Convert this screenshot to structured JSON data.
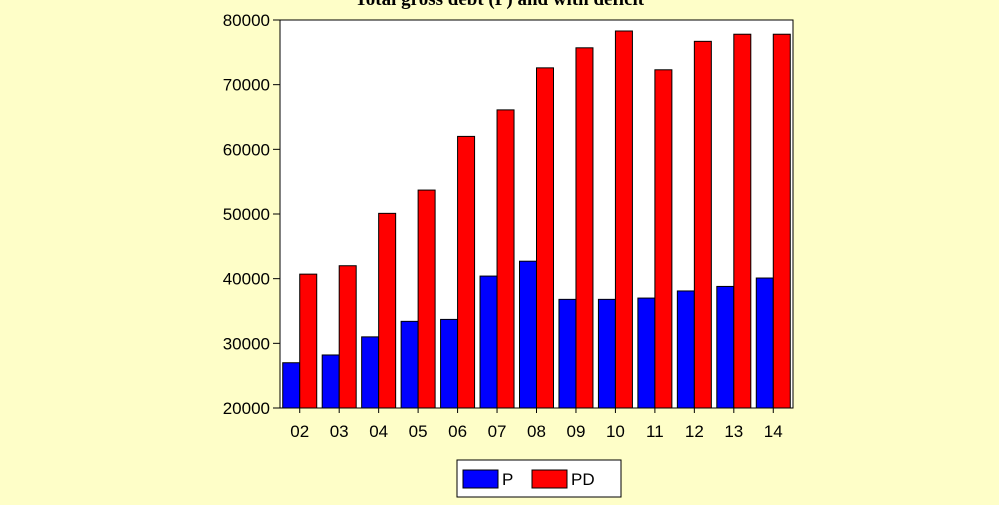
{
  "chart_data": {
    "type": "bar",
    "title": "Total gross debt (P) and with deficit",
    "xlabel": "",
    "ylabel": "",
    "categories": [
      "02",
      "03",
      "04",
      "05",
      "06",
      "07",
      "08",
      "09",
      "10",
      "11",
      "12",
      "13",
      "14"
    ],
    "series": [
      {
        "name": "P",
        "color": "#0000ff",
        "values": [
          27000,
          28200,
          31000,
          33400,
          33700,
          40400,
          42700,
          36800,
          36800,
          37000,
          38100,
          38800,
          40100
        ]
      },
      {
        "name": "PD",
        "color": "#ff0000",
        "values": [
          40700,
          42000,
          50100,
          53700,
          62000,
          66100,
          72600,
          75700,
          78300,
          72300,
          76700,
          77800,
          77800
        ]
      }
    ],
    "ylim": [
      20000,
      80000
    ],
    "yticks": [
      20000,
      30000,
      40000,
      50000,
      60000,
      70000,
      80000
    ],
    "grid": false,
    "legend_position": "bottom-center"
  }
}
